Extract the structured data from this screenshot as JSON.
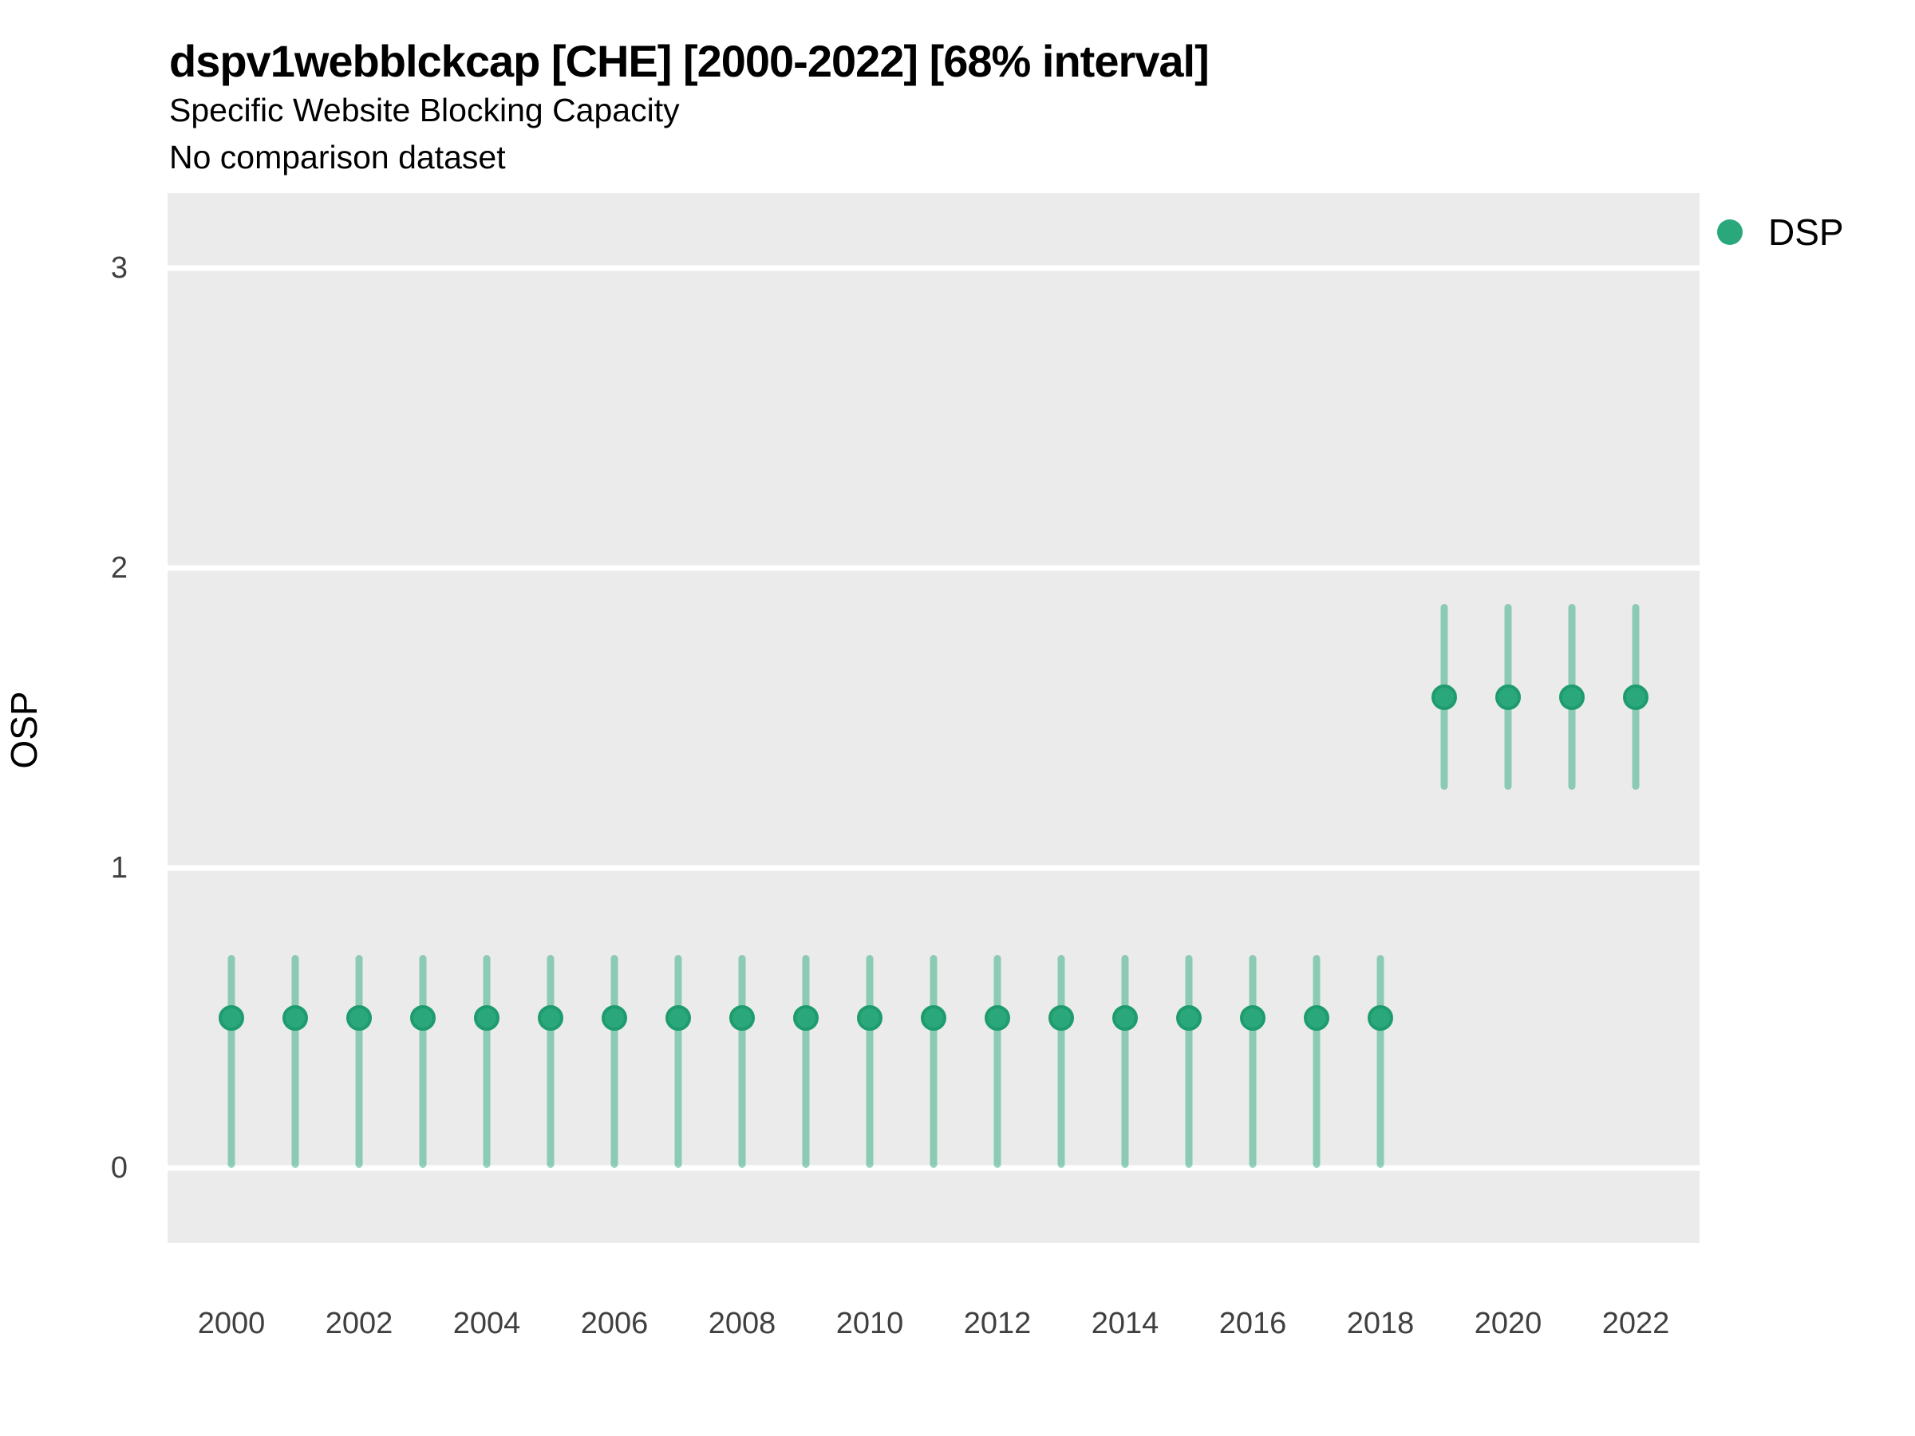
{
  "header": {
    "title": "dspv1webblckcap [CHE] [2000-2022] [68% interval]",
    "subtitle": "Specific Website Blocking Capacity",
    "comparison_note": "No comparison dataset"
  },
  "legend": {
    "position": "right-top",
    "items": [
      {
        "label": "DSP",
        "marker": "circle",
        "color": "#2AA87C"
      }
    ]
  },
  "colors": {
    "point_fill": "#2AA87C",
    "point_border": "#1E9C6E",
    "interval_bar": "rgba(43,171,126,0.5)",
    "panel_background": "#EBEBEB",
    "gridline": "#FFFFFF",
    "tick_text": "#404040",
    "title_text": "#000000"
  },
  "chart_data": {
    "type": "scatter",
    "title": "dspv1webblckcap [CHE] [2000-2022] [68% interval]",
    "subtitle": "Specific Website Blocking Capacity",
    "note": "No comparison dataset",
    "xlabel": "",
    "ylabel": "OSP",
    "interval_level": "68%",
    "grid": "major horizontal white gridlines on gray panel",
    "legend_position": "right-top",
    "xlim": [
      1999,
      2023
    ],
    "ylim": [
      -0.25,
      3.25
    ],
    "xticks": [
      2000,
      2002,
      2004,
      2006,
      2008,
      2010,
      2012,
      2014,
      2016,
      2018,
      2020,
      2022
    ],
    "yticks": [
      0,
      1,
      2,
      3
    ],
    "series": [
      {
        "name": "DSP",
        "points": [
          {
            "x": 2000,
            "y": 0.5,
            "lo": 0.0,
            "hi": 0.71
          },
          {
            "x": 2001,
            "y": 0.5,
            "lo": 0.0,
            "hi": 0.71
          },
          {
            "x": 2002,
            "y": 0.5,
            "lo": 0.0,
            "hi": 0.71
          },
          {
            "x": 2003,
            "y": 0.5,
            "lo": 0.0,
            "hi": 0.71
          },
          {
            "x": 2004,
            "y": 0.5,
            "lo": 0.0,
            "hi": 0.71
          },
          {
            "x": 2005,
            "y": 0.5,
            "lo": 0.0,
            "hi": 0.71
          },
          {
            "x": 2006,
            "y": 0.5,
            "lo": 0.0,
            "hi": 0.71
          },
          {
            "x": 2007,
            "y": 0.5,
            "lo": 0.0,
            "hi": 0.71
          },
          {
            "x": 2008,
            "y": 0.5,
            "lo": 0.0,
            "hi": 0.71
          },
          {
            "x": 2009,
            "y": 0.5,
            "lo": 0.0,
            "hi": 0.71
          },
          {
            "x": 2010,
            "y": 0.5,
            "lo": 0.0,
            "hi": 0.71
          },
          {
            "x": 2011,
            "y": 0.5,
            "lo": 0.0,
            "hi": 0.71
          },
          {
            "x": 2012,
            "y": 0.5,
            "lo": 0.0,
            "hi": 0.71
          },
          {
            "x": 2013,
            "y": 0.5,
            "lo": 0.0,
            "hi": 0.71
          },
          {
            "x": 2014,
            "y": 0.5,
            "lo": 0.0,
            "hi": 0.71
          },
          {
            "x": 2015,
            "y": 0.5,
            "lo": 0.0,
            "hi": 0.71
          },
          {
            "x": 2016,
            "y": 0.5,
            "lo": 0.0,
            "hi": 0.71
          },
          {
            "x": 2017,
            "y": 0.5,
            "lo": 0.0,
            "hi": 0.71
          },
          {
            "x": 2018,
            "y": 0.5,
            "lo": 0.0,
            "hi": 0.71
          },
          {
            "x": 2019,
            "y": 1.57,
            "lo": 1.26,
            "hi": 1.88
          },
          {
            "x": 2020,
            "y": 1.57,
            "lo": 1.26,
            "hi": 1.88
          },
          {
            "x": 2021,
            "y": 1.57,
            "lo": 1.26,
            "hi": 1.88
          },
          {
            "x": 2022,
            "y": 1.57,
            "lo": 1.26,
            "hi": 1.88
          }
        ]
      }
    ]
  }
}
